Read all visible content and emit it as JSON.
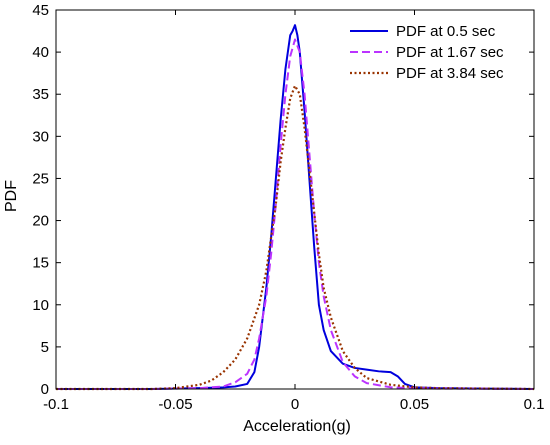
{
  "chart_data": {
    "type": "line",
    "title": "",
    "xlabel": "Acceleration(g)",
    "ylabel": "PDF",
    "xlim": [
      -0.1,
      0.1
    ],
    "ylim": [
      0,
      45
    ],
    "xticks": [
      -0.1,
      -0.05,
      0,
      0.05,
      0.1
    ],
    "xtick_labels": [
      "-0.1",
      "-0.05",
      "0",
      "0.05",
      "0.1"
    ],
    "yticks": [
      0,
      5,
      10,
      15,
      20,
      25,
      30,
      35,
      40,
      45
    ],
    "ytick_labels": [
      "0",
      "5",
      "10",
      "15",
      "20",
      "25",
      "30",
      "35",
      "40",
      "45"
    ],
    "grid": false,
    "legend_position": "top-right",
    "series": [
      {
        "name": "PDF at 0.5 sec",
        "color": "#0000dd",
        "style": "solid",
        "x": [
          -0.1,
          -0.06,
          -0.04,
          -0.03,
          -0.025,
          -0.02,
          -0.017,
          -0.015,
          -0.012,
          -0.01,
          -0.008,
          -0.006,
          -0.004,
          -0.002,
          -0.001,
          0,
          0.001,
          0.002,
          0.004,
          0.006,
          0.008,
          0.01,
          0.012,
          0.015,
          0.02,
          0.025,
          0.03,
          0.035,
          0.04,
          0.043,
          0.046,
          0.05,
          0.06,
          0.08,
          0.1
        ],
        "y": [
          0,
          0,
          0.1,
          0.2,
          0.3,
          0.6,
          2.0,
          5.0,
          12.0,
          18.0,
          25.0,
          32.0,
          38.0,
          42.0,
          42.5,
          43.2,
          42.0,
          40.0,
          33.0,
          25.0,
          17.0,
          10.0,
          7.0,
          4.5,
          3.0,
          2.5,
          2.3,
          2.1,
          2.0,
          1.5,
          0.6,
          0.2,
          0.1,
          0.05,
          0
        ]
      },
      {
        "name": "PDF at 1.67 sec",
        "color": "#bb33ff",
        "style": "dashed",
        "x": [
          -0.1,
          -0.06,
          -0.04,
          -0.03,
          -0.025,
          -0.02,
          -0.017,
          -0.015,
          -0.012,
          -0.01,
          -0.008,
          -0.006,
          -0.004,
          -0.002,
          0,
          0.002,
          0.004,
          0.006,
          0.008,
          0.01,
          0.012,
          0.015,
          0.02,
          0.025,
          0.03,
          0.04,
          0.05,
          0.06,
          0.1
        ],
        "y": [
          0,
          0,
          0.1,
          0.3,
          0.8,
          1.8,
          3.5,
          6.0,
          11.0,
          16.0,
          22.0,
          29.0,
          35.0,
          39.5,
          41.5,
          40.0,
          35.0,
          28.0,
          21.0,
          15.0,
          11.0,
          7.0,
          3.2,
          1.5,
          0.7,
          0.2,
          0.1,
          0.05,
          0
        ]
      },
      {
        "name": "PDF at 3.84 sec",
        "color": "#993300",
        "style": "dotted",
        "x": [
          -0.1,
          -0.06,
          -0.05,
          -0.04,
          -0.035,
          -0.03,
          -0.025,
          -0.02,
          -0.015,
          -0.012,
          -0.01,
          -0.008,
          -0.006,
          -0.004,
          -0.002,
          0,
          0.002,
          0.004,
          0.006,
          0.008,
          0.01,
          0.012,
          0.015,
          0.02,
          0.025,
          0.03,
          0.04,
          0.05,
          0.06,
          0.1
        ],
        "y": [
          0,
          0,
          0.1,
          0.5,
          1.0,
          2.0,
          3.5,
          6.0,
          10.0,
          14.0,
          18.0,
          22.0,
          27.0,
          31.0,
          34.5,
          36.0,
          35.0,
          31.0,
          26.0,
          21.0,
          16.0,
          12.0,
          8.5,
          4.5,
          2.5,
          1.3,
          0.5,
          0.2,
          0.1,
          0
        ]
      }
    ]
  }
}
